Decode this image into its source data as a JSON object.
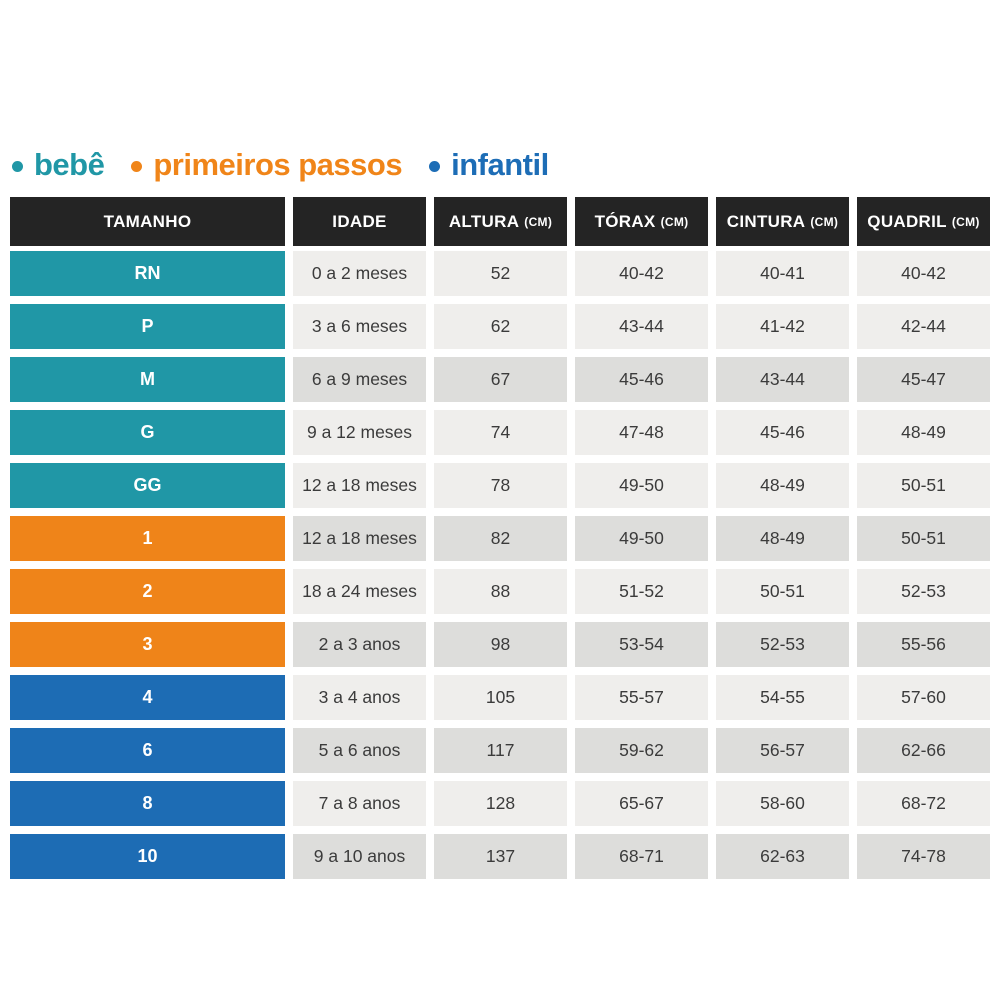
{
  "legend": {
    "items": [
      {
        "label": "bebê",
        "key": "bebe",
        "color": "#2097a6"
      },
      {
        "label": "primeiros passos",
        "key": "primeiros-passos",
        "color": "#f08519"
      },
      {
        "label": "infantil",
        "key": "infantil",
        "color": "#1d6db6"
      }
    ]
  },
  "chart_data": {
    "type": "table",
    "columns": [
      {
        "label": "TAMANHO",
        "unit": ""
      },
      {
        "label": "IDADE",
        "unit": ""
      },
      {
        "label": "ALTURA",
        "unit": "(CM)"
      },
      {
        "label": "TÓRAX",
        "unit": "(CM)"
      },
      {
        "label": "CINTURA",
        "unit": "(CM)"
      },
      {
        "label": "QUADRIL",
        "unit": "(CM)"
      }
    ],
    "rows": [
      {
        "size": "RN",
        "group": "bebe",
        "shade": "light",
        "idade": "0 a 2 meses",
        "altura": "52",
        "torax": "40-42",
        "cintura": "40-41",
        "quadril": "40-42"
      },
      {
        "size": "P",
        "group": "bebe",
        "shade": "light",
        "idade": "3 a 6 meses",
        "altura": "62",
        "torax": "43-44",
        "cintura": "41-42",
        "quadril": "42-44"
      },
      {
        "size": "M",
        "group": "bebe",
        "shade": "dark",
        "idade": "6 a 9 meses",
        "altura": "67",
        "torax": "45-46",
        "cintura": "43-44",
        "quadril": "45-47"
      },
      {
        "size": "G",
        "group": "bebe",
        "shade": "light",
        "idade": "9 a 12 meses",
        "altura": "74",
        "torax": "47-48",
        "cintura": "45-46",
        "quadril": "48-49"
      },
      {
        "size": "GG",
        "group": "bebe",
        "shade": "light",
        "idade": "12 a 18 meses",
        "altura": "78",
        "torax": "49-50",
        "cintura": "48-49",
        "quadril": "50-51"
      },
      {
        "size": "1",
        "group": "primeiros-passos",
        "shade": "dark",
        "idade": "12 a 18 meses",
        "altura": "82",
        "torax": "49-50",
        "cintura": "48-49",
        "quadril": "50-51"
      },
      {
        "size": "2",
        "group": "primeiros-passos",
        "shade": "light",
        "idade": "18 a 24 meses",
        "altura": "88",
        "torax": "51-52",
        "cintura": "50-51",
        "quadril": "52-53"
      },
      {
        "size": "3",
        "group": "primeiros-passos",
        "shade": "dark",
        "idade": "2 a 3 anos",
        "altura": "98",
        "torax": "53-54",
        "cintura": "52-53",
        "quadril": "55-56"
      },
      {
        "size": "4",
        "group": "infantil",
        "shade": "light",
        "idade": "3 a 4 anos",
        "altura": "105",
        "torax": "55-57",
        "cintura": "54-55",
        "quadril": "57-60"
      },
      {
        "size": "6",
        "group": "infantil",
        "shade": "dark",
        "idade": "5 a 6 anos",
        "altura": "117",
        "torax": "59-62",
        "cintura": "56-57",
        "quadril": "62-66"
      },
      {
        "size": "8",
        "group": "infantil",
        "shade": "light",
        "idade": "7 a 8 anos",
        "altura": "128",
        "torax": "65-67",
        "cintura": "58-60",
        "quadril": "68-72"
      },
      {
        "size": "10",
        "group": "infantil",
        "shade": "dark",
        "idade": "9 a 10 anos",
        "altura": "137",
        "torax": "68-71",
        "cintura": "62-63",
        "quadril": "74-78"
      }
    ]
  },
  "colors": {
    "teal": "#2097a6",
    "orange": "#f08519",
    "blue": "#1d6db6",
    "header_bg": "#242424",
    "header_text": "#ffffff",
    "row_light": "#efeeec",
    "row_dark": "#dddddb",
    "cell_text": "#3b3b3b"
  }
}
